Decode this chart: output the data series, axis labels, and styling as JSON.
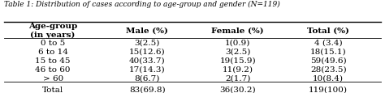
{
  "title": "Table 1: Distribution of cases according to age-group and gender (N=119)",
  "columns": [
    "Age-group\n(in years)",
    "Male (%)",
    "Female (%)",
    "Total (%)"
  ],
  "rows": [
    [
      "0 to 5",
      "3(2.5)",
      "1(0.9)",
      "4 (3.4)"
    ],
    [
      "6 to 14",
      "15(12.6)",
      "3(2.5)",
      "18(15.1)"
    ],
    [
      "15 to 45",
      "40(33.7)",
      "19(15.9)",
      "59(49.6)"
    ],
    [
      "46 to 60",
      "17(14.3)",
      "11(9.2)",
      "28(23.5)"
    ],
    [
      "> 60",
      "8(6.7)",
      "2(1.7)",
      "10(8.4)"
    ],
    [
      "Total",
      "83(69.8)",
      "36(30.2)",
      "119(100)"
    ]
  ],
  "title_fontsize": 6.5,
  "header_fontsize": 7.5,
  "cell_fontsize": 7.5,
  "fig_width": 4.74,
  "fig_height": 1.16,
  "dpi": 100
}
